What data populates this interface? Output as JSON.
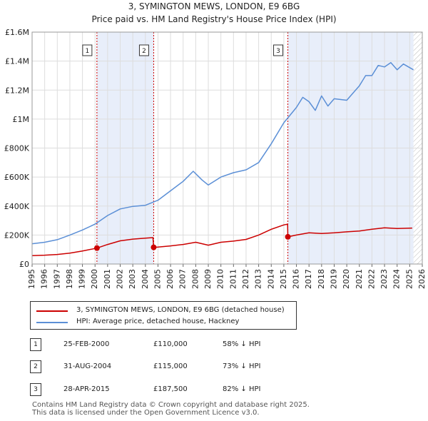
{
  "title": "3, SYMINGTON MEWS, LONDON, E9 6BG",
  "subtitle": "Price paid vs. HM Land Registry's House Price Index (HPI)",
  "colors": {
    "property": "#cc0000",
    "hpi": "#5b8fd6",
    "shade": "#e8eefa",
    "sale_line": "#cc0000"
  },
  "chart_data": {
    "type": "line",
    "title": "3, SYMINGTON MEWS, LONDON, E9 6BG",
    "subtitle": "Price paid vs. HM Land Registry's House Price Index (HPI)",
    "xlim": [
      1995,
      2026
    ],
    "ylim": [
      0,
      1600000
    ],
    "y_ticks": [
      0,
      200000,
      400000,
      600000,
      800000,
      1000000,
      1200000,
      1400000,
      1600000
    ],
    "y_tick_labels": [
      "£0",
      "£200K",
      "£400K",
      "£600K",
      "£800K",
      "£1M",
      "£1.2M",
      "£1.4M",
      "£1.6M"
    ],
    "x_ticks": [
      1995,
      1996,
      1997,
      1998,
      1999,
      2000,
      2001,
      2002,
      2003,
      2004,
      2005,
      2006,
      2007,
      2008,
      2009,
      2010,
      2011,
      2012,
      2013,
      2014,
      2015,
      2016,
      2017,
      2018,
      2019,
      2020,
      2021,
      2022,
      2023,
      2024,
      2025,
      2026
    ],
    "x_tick_labels": [
      "1995",
      "1996",
      "1997",
      "1998",
      "1999",
      "2000",
      "2001",
      "2002",
      "2003",
      "2004",
      "2005",
      "2006",
      "2007",
      "2008",
      "2009",
      "2010",
      "2011",
      "2012",
      "2013",
      "2014",
      "2015",
      "2016",
      "2017",
      "2018",
      "2019",
      "2020",
      "2021",
      "2022",
      "2023",
      "2024",
      "2025",
      "2026"
    ],
    "grid": true,
    "shaded_spans": [
      [
        2000.15,
        2004.66
      ],
      [
        2015.32,
        2025.3
      ]
    ],
    "hatched_from": 2025.3,
    "series": [
      {
        "name": "3, SYMINGTON MEWS, LONDON, E9 6BG (detached house)",
        "color": "#cc0000",
        "x": [
          1995,
          1996,
          1997,
          1998,
          1999,
          2000.15,
          2001,
          2002,
          2003,
          2004,
          2004.6,
          2004.66,
          2005,
          2006,
          2007,
          2008,
          2009,
          2010,
          2011,
          2012,
          2013,
          2014,
          2015,
          2015.3,
          2015.32,
          2016,
          2017,
          2018,
          2019,
          2020,
          2021,
          2022,
          2023,
          2024,
          2025.2
        ],
        "y": [
          58000,
          61000,
          66000,
          75000,
          90000,
          110000,
          135000,
          160000,
          172000,
          178000,
          182000,
          115000,
          117000,
          125000,
          135000,
          150000,
          130000,
          150000,
          158000,
          170000,
          200000,
          240000,
          270000,
          275000,
          187500,
          200000,
          215000,
          210000,
          215000,
          222000,
          228000,
          240000,
          250000,
          245000,
          248000
        ]
      },
      {
        "name": "HPI: Average price, detached house, Hackney",
        "color": "#5b8fd6",
        "x": [
          1995,
          1996,
          1997,
          1998,
          1999,
          2000,
          2001,
          2002,
          2003,
          2004,
          2005,
          2006,
          2007,
          2007.8,
          2008.5,
          2009,
          2010,
          2011,
          2012,
          2013,
          2014,
          2015,
          2016,
          2016.5,
          2017,
          2017.5,
          2018,
          2018.5,
          2019,
          2020,
          2021,
          2021.5,
          2022,
          2022.5,
          2023,
          2023.5,
          2024,
          2024.5,
          2025.3
        ],
        "y": [
          140000,
          150000,
          168000,
          200000,
          235000,
          275000,
          335000,
          380000,
          398000,
          405000,
          440000,
          505000,
          570000,
          640000,
          580000,
          545000,
          600000,
          630000,
          650000,
          700000,
          830000,
          975000,
          1080000,
          1150000,
          1120000,
          1060000,
          1160000,
          1090000,
          1140000,
          1130000,
          1230000,
          1300000,
          1300000,
          1370000,
          1360000,
          1390000,
          1340000,
          1380000,
          1340000
        ]
      }
    ],
    "sales": [
      {
        "num": "1",
        "x": 2000.15,
        "price": 110000
      },
      {
        "num": "2",
        "x": 2004.66,
        "price": 115000
      },
      {
        "num": "3",
        "x": 2015.32,
        "price": 187500
      }
    ]
  },
  "legend": [
    {
      "label": "3, SYMINGTON MEWS, LONDON, E9 6BG (detached house)",
      "color": "#cc0000"
    },
    {
      "label": "HPI: Average price, detached house, Hackney",
      "color": "#5b8fd6"
    }
  ],
  "sales_table": [
    {
      "num": "1",
      "date": "25-FEB-2000",
      "price": "£110,000",
      "delta": "58% ↓ HPI"
    },
    {
      "num": "2",
      "date": "31-AUG-2004",
      "price": "£115,000",
      "delta": "73% ↓ HPI"
    },
    {
      "num": "3",
      "date": "28-APR-2015",
      "price": "£187,500",
      "delta": "82% ↓ HPI"
    }
  ],
  "footer": {
    "line1": "Contains HM Land Registry data © Crown copyright and database right 2025.",
    "line2": "This data is licensed under the Open Government Licence v3.0."
  }
}
